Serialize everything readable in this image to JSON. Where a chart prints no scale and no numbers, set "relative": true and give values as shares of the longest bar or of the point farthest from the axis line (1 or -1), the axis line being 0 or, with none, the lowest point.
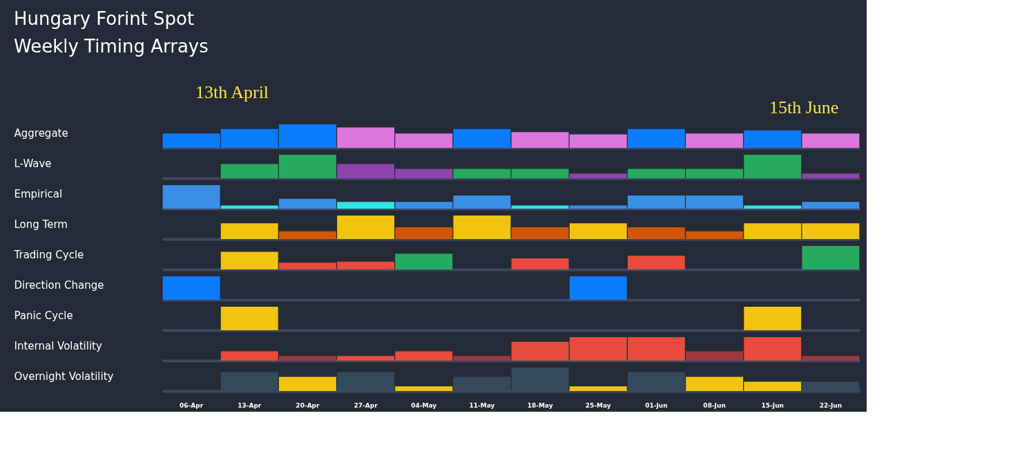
{
  "chart_data": [
    {
      "type": "bar",
      "title": "Hungary Forint Spot",
      "subtitle": "Weekly Timing Arrays",
      "annotations": [
        "13th April",
        "15th June"
      ],
      "ylabel": "Aggregate",
      "relative": true,
      "tick_labels": false,
      "categories": [
        null,
        null,
        null,
        null,
        null,
        null,
        null,
        null,
        null,
        null,
        null,
        null
      ],
      "values": [
        0.61,
        0.8,
        1,
        0.87,
        0.61,
        0.8,
        0.67,
        0.57,
        0.8,
        0.61,
        0.74,
        0.61
      ],
      "colors": [
        "#0a7bff",
        "#0a7bff",
        "#0a7bff",
        "#dd77dd",
        "#dd77dd",
        "#0a7bff",
        "#dd77dd",
        "#dd77dd",
        "#0a7bff",
        "#dd77dd",
        "#0a7bff",
        "#dd77dd"
      ]
    },
    {
      "type": "bar",
      "ylabel": "L-Wave",
      "relative": true,
      "tick_labels": false,
      "categories": [
        null,
        null,
        null,
        null,
        null,
        null,
        null,
        null,
        null,
        null,
        null,
        null
      ],
      "values": [
        null,
        0.6,
        1,
        0.6,
        0.4,
        0.4,
        0.4,
        0.2,
        0.4,
        0.4,
        1,
        0.2
      ],
      "colors": [
        null,
        "#25ab5f",
        "#25ab5f",
        "#8e44ad",
        "#8e44ad",
        "#25ab5f",
        "#25ab5f",
        "#8e44ad",
        "#25ab5f",
        "#25ab5f",
        "#25ab5f",
        "#8e44ad"
      ]
    },
    {
      "type": "bar",
      "ylabel": "Empirical",
      "relative": true,
      "tick_labels": false,
      "categories": [
        null,
        null,
        null,
        null,
        null,
        null,
        null,
        null,
        null,
        null,
        null,
        null
      ],
      "values": [
        1,
        0.13,
        0.42,
        0.29,
        0.29,
        0.56,
        0.13,
        0.13,
        0.56,
        0.56,
        0.13,
        0.29
      ],
      "colors": [
        "#3a8ee6",
        "#2ee6e6",
        "#3a8ee6",
        "#2ee6e6",
        "#3a8ee6",
        "#3a8ee6",
        "#2ee6e6",
        "#3a8ee6",
        "#3a8ee6",
        "#3a8ee6",
        "#2ee6e6",
        "#3a8ee6"
      ]
    },
    {
      "type": "bar",
      "ylabel": "Long Term",
      "relative": true,
      "tick_labels": false,
      "categories": [
        null,
        null,
        null,
        null,
        null,
        null,
        null,
        null,
        null,
        null,
        null,
        null
      ],
      "values": [
        null,
        0.67,
        0.33,
        1,
        0.5,
        1,
        0.5,
        0.67,
        0.5,
        0.33,
        0.67,
        0.67
      ],
      "colors": [
        null,
        "#f1c40f",
        "#d35400",
        "#f1c40f",
        "#d35400",
        "#f1c40f",
        "#d35400",
        "#f1c40f",
        "#d35400",
        "#d35400",
        "#f1c40f",
        "#f1c40f"
      ]
    },
    {
      "type": "bar",
      "ylabel": "Trading Cycle",
      "relative": true,
      "tick_labels": false,
      "categories": [
        null,
        null,
        null,
        null,
        null,
        null,
        null,
        null,
        null,
        null,
        null,
        null
      ],
      "values": [
        null,
        0.75,
        0.29,
        0.33,
        0.67,
        null,
        0.47,
        null,
        0.58,
        null,
        null,
        1
      ],
      "colors": [
        null,
        "#f1c40f",
        "#e74c3c",
        "#e74c3c",
        "#25ab5f",
        null,
        "#e74c3c",
        null,
        "#e74c3c",
        null,
        null,
        "#25ab5f"
      ]
    },
    {
      "type": "bar",
      "ylabel": "Direction Change",
      "relative": true,
      "tick_labels": false,
      "categories": [
        null,
        null,
        null,
        null,
        null,
        null,
        null,
        null,
        null,
        null,
        null,
        null
      ],
      "values": [
        1,
        null,
        null,
        null,
        null,
        null,
        null,
        1,
        null,
        null,
        null,
        null
      ],
      "colors": [
        "#0a7bff",
        null,
        null,
        null,
        null,
        null,
        null,
        "#0a7bff",
        null,
        null,
        null,
        null
      ]
    },
    {
      "type": "bar",
      "ylabel": "Panic Cycle",
      "relative": true,
      "tick_labels": false,
      "categories": [
        null,
        null,
        null,
        null,
        null,
        null,
        null,
        null,
        null,
        null,
        null,
        null
      ],
      "values": [
        null,
        1,
        null,
        null,
        null,
        null,
        null,
        null,
        null,
        null,
        1,
        null
      ],
      "colors": [
        null,
        "#f1c40f",
        null,
        null,
        null,
        null,
        null,
        null,
        null,
        null,
        "#f1c40f",
        null
      ]
    },
    {
      "type": "bar",
      "ylabel": "Internal Volatility",
      "relative": true,
      "tick_labels": false,
      "categories": [
        null,
        null,
        null,
        null,
        null,
        null,
        null,
        null,
        null,
        null,
        null,
        null
      ],
      "values": [
        null,
        0.4,
        0.2,
        0.2,
        0.4,
        0.2,
        0.8,
        1,
        1,
        0.4,
        1,
        0.2
      ],
      "colors": [
        null,
        "#e74c3c",
        "#9b3a3a",
        "#e74c3c",
        "#e74c3c",
        "#9b3a3a",
        "#e74c3c",
        "#e74c3c",
        "#e74c3c",
        "#9b3a3a",
        "#e74c3c",
        "#9b3a3a"
      ]
    },
    {
      "type": "bar",
      "ylabel": "Overnight Volatility",
      "relative": true,
      "tick_labels": "x",
      "categories": [
        "06-Apr",
        "13-Apr",
        "20-Apr",
        "27-Apr",
        "04-May",
        "11-May",
        "18-May",
        "25-May",
        "01-Jun",
        "08-Jun",
        "15-Jun",
        "22-Jun"
      ],
      "values": [
        null,
        0.8,
        0.6,
        0.8,
        0.2,
        0.6,
        1,
        0.2,
        0.8,
        0.6,
        0.4,
        0.4
      ],
      "colors": [
        null,
        "#34495e",
        "#f1c40f",
        "#34495e",
        "#f1c40f",
        "#34495e",
        "#34495e",
        "#f1c40f",
        "#34495e",
        "#f1c40f",
        "#f1c40f",
        "#34495e"
      ]
    }
  ]
}
